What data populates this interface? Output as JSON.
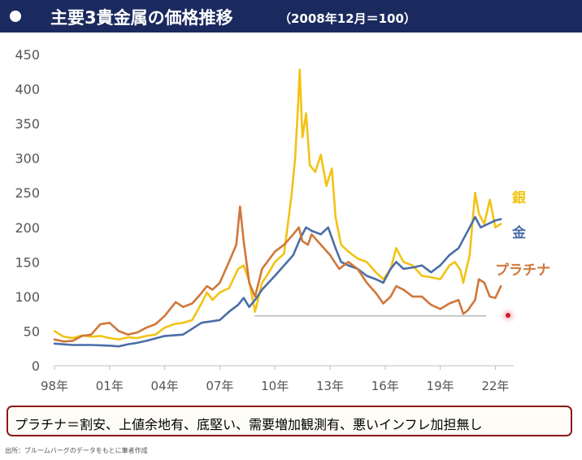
{
  "header": {
    "title": "主要3貴金属の価格推移",
    "subtitle": "（2008年12月＝100）"
  },
  "chart_data": {
    "type": "line",
    "ylim": [
      0,
      450
    ],
    "yticks": [
      0,
      50,
      100,
      150,
      200,
      250,
      300,
      350,
      400,
      450
    ],
    "xlim": [
      1998,
      2023
    ],
    "xticks": [
      {
        "x": 1998,
        "label": "98年"
      },
      {
        "x": 2001,
        "label": "01年"
      },
      {
        "x": 2004,
        "label": "04年"
      },
      {
        "x": 2007,
        "label": "07年"
      },
      {
        "x": 2010,
        "label": "10年"
      },
      {
        "x": 2013,
        "label": "13年"
      },
      {
        "x": 2016,
        "label": "16年"
      },
      {
        "x": 2019,
        "label": "19年"
      },
      {
        "x": 2022,
        "label": "22年"
      }
    ],
    "reference_line": {
      "y": 72,
      "x_start": 2008.9,
      "x_end": 2021.5,
      "color": "#aaaaaa"
    },
    "series": [
      {
        "name": "銀",
        "color": "#f2c314",
        "x": [
          1998,
          1998.5,
          1999,
          1999.5,
          2000,
          2000.5,
          2001,
          2001.5,
          2002,
          2002.5,
          2003,
          2003.5,
          2004,
          2004.5,
          2005,
          2005.5,
          2006,
          2006.3,
          2006.6,
          2007,
          2007.5,
          2008,
          2008.3,
          2008.6,
          2008.92,
          2009.3,
          2009.6,
          2010,
          2010.5,
          2010.9,
          2011.1,
          2011.25,
          2011.35,
          2011.5,
          2011.7,
          2011.9,
          2012.2,
          2012.5,
          2012.8,
          2013.1,
          2013.3,
          2013.6,
          2014,
          2014.5,
          2015,
          2015.5,
          2015.9,
          2016.3,
          2016.6,
          2017,
          2017.5,
          2018,
          2018.5,
          2019,
          2019.5,
          2019.8,
          2020.1,
          2020.25,
          2020.6,
          2020.9,
          2021.1,
          2021.4,
          2021.7,
          2022,
          2022.3
        ],
        "y": [
          50,
          42,
          40,
          44,
          42,
          43,
          40,
          38,
          41,
          40,
          43,
          45,
          55,
          60,
          62,
          66,
          90,
          106,
          95,
          106,
          112,
          140,
          145,
          122,
          78,
          120,
          132,
          150,
          162,
          245,
          300,
          370,
          428,
          330,
          365,
          290,
          280,
          305,
          260,
          285,
          215,
          175,
          165,
          155,
          150,
          135,
          125,
          140,
          170,
          150,
          145,
          130,
          128,
          125,
          145,
          150,
          138,
          120,
          160,
          250,
          220,
          205,
          240,
          200,
          205
        ]
      },
      {
        "name": "金",
        "color": "#4a6ea8",
        "x": [
          1998,
          1999,
          2000,
          2001,
          2001.5,
          2002,
          2002.5,
          2003,
          2004,
          2005,
          2006,
          2007,
          2007.5,
          2008,
          2008.3,
          2008.6,
          2008.92,
          2009.3,
          2010,
          2010.5,
          2011,
          2011.4,
          2011.7,
          2012,
          2012.5,
          2012.9,
          2013.3,
          2013.6,
          2014,
          2014.5,
          2015,
          2015.5,
          2015.9,
          2016.3,
          2016.6,
          2017,
          2017.5,
          2018,
          2018.5,
          2019,
          2019.5,
          2020,
          2020.6,
          2020.9,
          2021.2,
          2021.6,
          2022,
          2022.3
        ],
        "y": [
          32,
          30,
          30,
          29,
          28,
          31,
          33,
          36,
          43,
          45,
          62,
          66,
          78,
          88,
          98,
          85,
          95,
          110,
          130,
          145,
          160,
          185,
          200,
          195,
          190,
          200,
          170,
          150,
          145,
          140,
          130,
          125,
          120,
          140,
          150,
          140,
          142,
          145,
          135,
          145,
          160,
          170,
          200,
          215,
          200,
          205,
          210,
          212
        ]
      },
      {
        "name": "プラチナ",
        "color": "#d0773a",
        "x": [
          1998,
          1998.5,
          1999,
          1999.5,
          2000,
          2000.5,
          2001,
          2001.5,
          2002,
          2002.5,
          2003,
          2003.5,
          2004,
          2004.3,
          2004.6,
          2005,
          2005.5,
          2006,
          2006.3,
          2006.6,
          2007,
          2007.5,
          2007.9,
          2008.1,
          2008.3,
          2008.6,
          2008.92,
          2009.3,
          2010,
          2010.5,
          2011,
          2011.3,
          2011.5,
          2011.8,
          2012,
          2012.5,
          2013,
          2013.5,
          2014,
          2014.5,
          2015,
          2015.5,
          2015.9,
          2016.3,
          2016.6,
          2017,
          2017.5,
          2018,
          2018.5,
          2019,
          2019.5,
          2020,
          2020.25,
          2020.5,
          2020.9,
          2021.1,
          2021.4,
          2021.7,
          2022,
          2022.3
        ],
        "y": [
          38,
          35,
          36,
          43,
          45,
          60,
          62,
          50,
          45,
          48,
          55,
          60,
          72,
          82,
          92,
          85,
          90,
          105,
          115,
          110,
          120,
          150,
          175,
          230,
          180,
          120,
          100,
          140,
          165,
          175,
          190,
          200,
          180,
          175,
          190,
          175,
          160,
          140,
          150,
          140,
          120,
          105,
          90,
          100,
          115,
          110,
          100,
          100,
          88,
          82,
          90,
          95,
          75,
          80,
          95,
          125,
          120,
          100,
          98,
          115
        ]
      }
    ]
  },
  "note": {
    "text": "プラチナ＝割安、上値余地有、底堅い、需要増加観測有、悪いインフレ加担無し"
  },
  "source": {
    "text": "出所：ブルームバーグのデータをもとに筆者作成"
  }
}
